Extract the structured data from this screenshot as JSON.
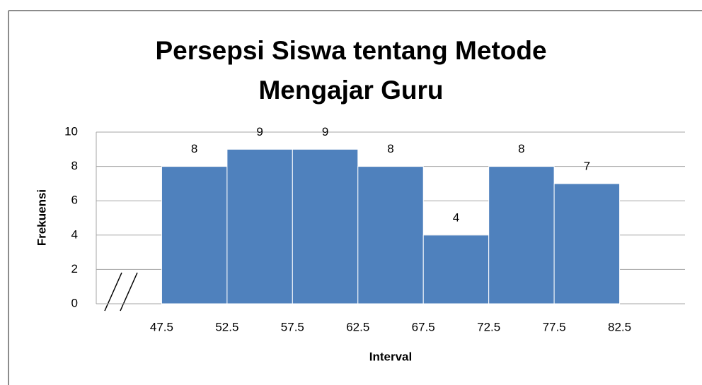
{
  "chart_data": {
    "type": "histogram",
    "title": "Persepsi Siswa tentang Metode Mengajar Guru",
    "x_label": "Interval",
    "y_label": "Frekuensi",
    "bins": [
      47.5,
      52.5,
      57.5,
      62.5,
      67.5,
      72.5,
      77.5,
      82.5
    ],
    "values": [
      8,
      9,
      9,
      8,
      4,
      8,
      7
    ],
    "color": "#4f81bd",
    "xlim": [
      42.5,
      87.5
    ],
    "xticks": [
      47.5,
      52.5,
      57.5,
      62.5,
      67.5,
      72.5,
      77.5,
      82.5
    ],
    "ylim": [
      0,
      10
    ],
    "yticks": [
      0,
      2,
      4,
      6,
      8,
      10
    ],
    "grid": true
  }
}
